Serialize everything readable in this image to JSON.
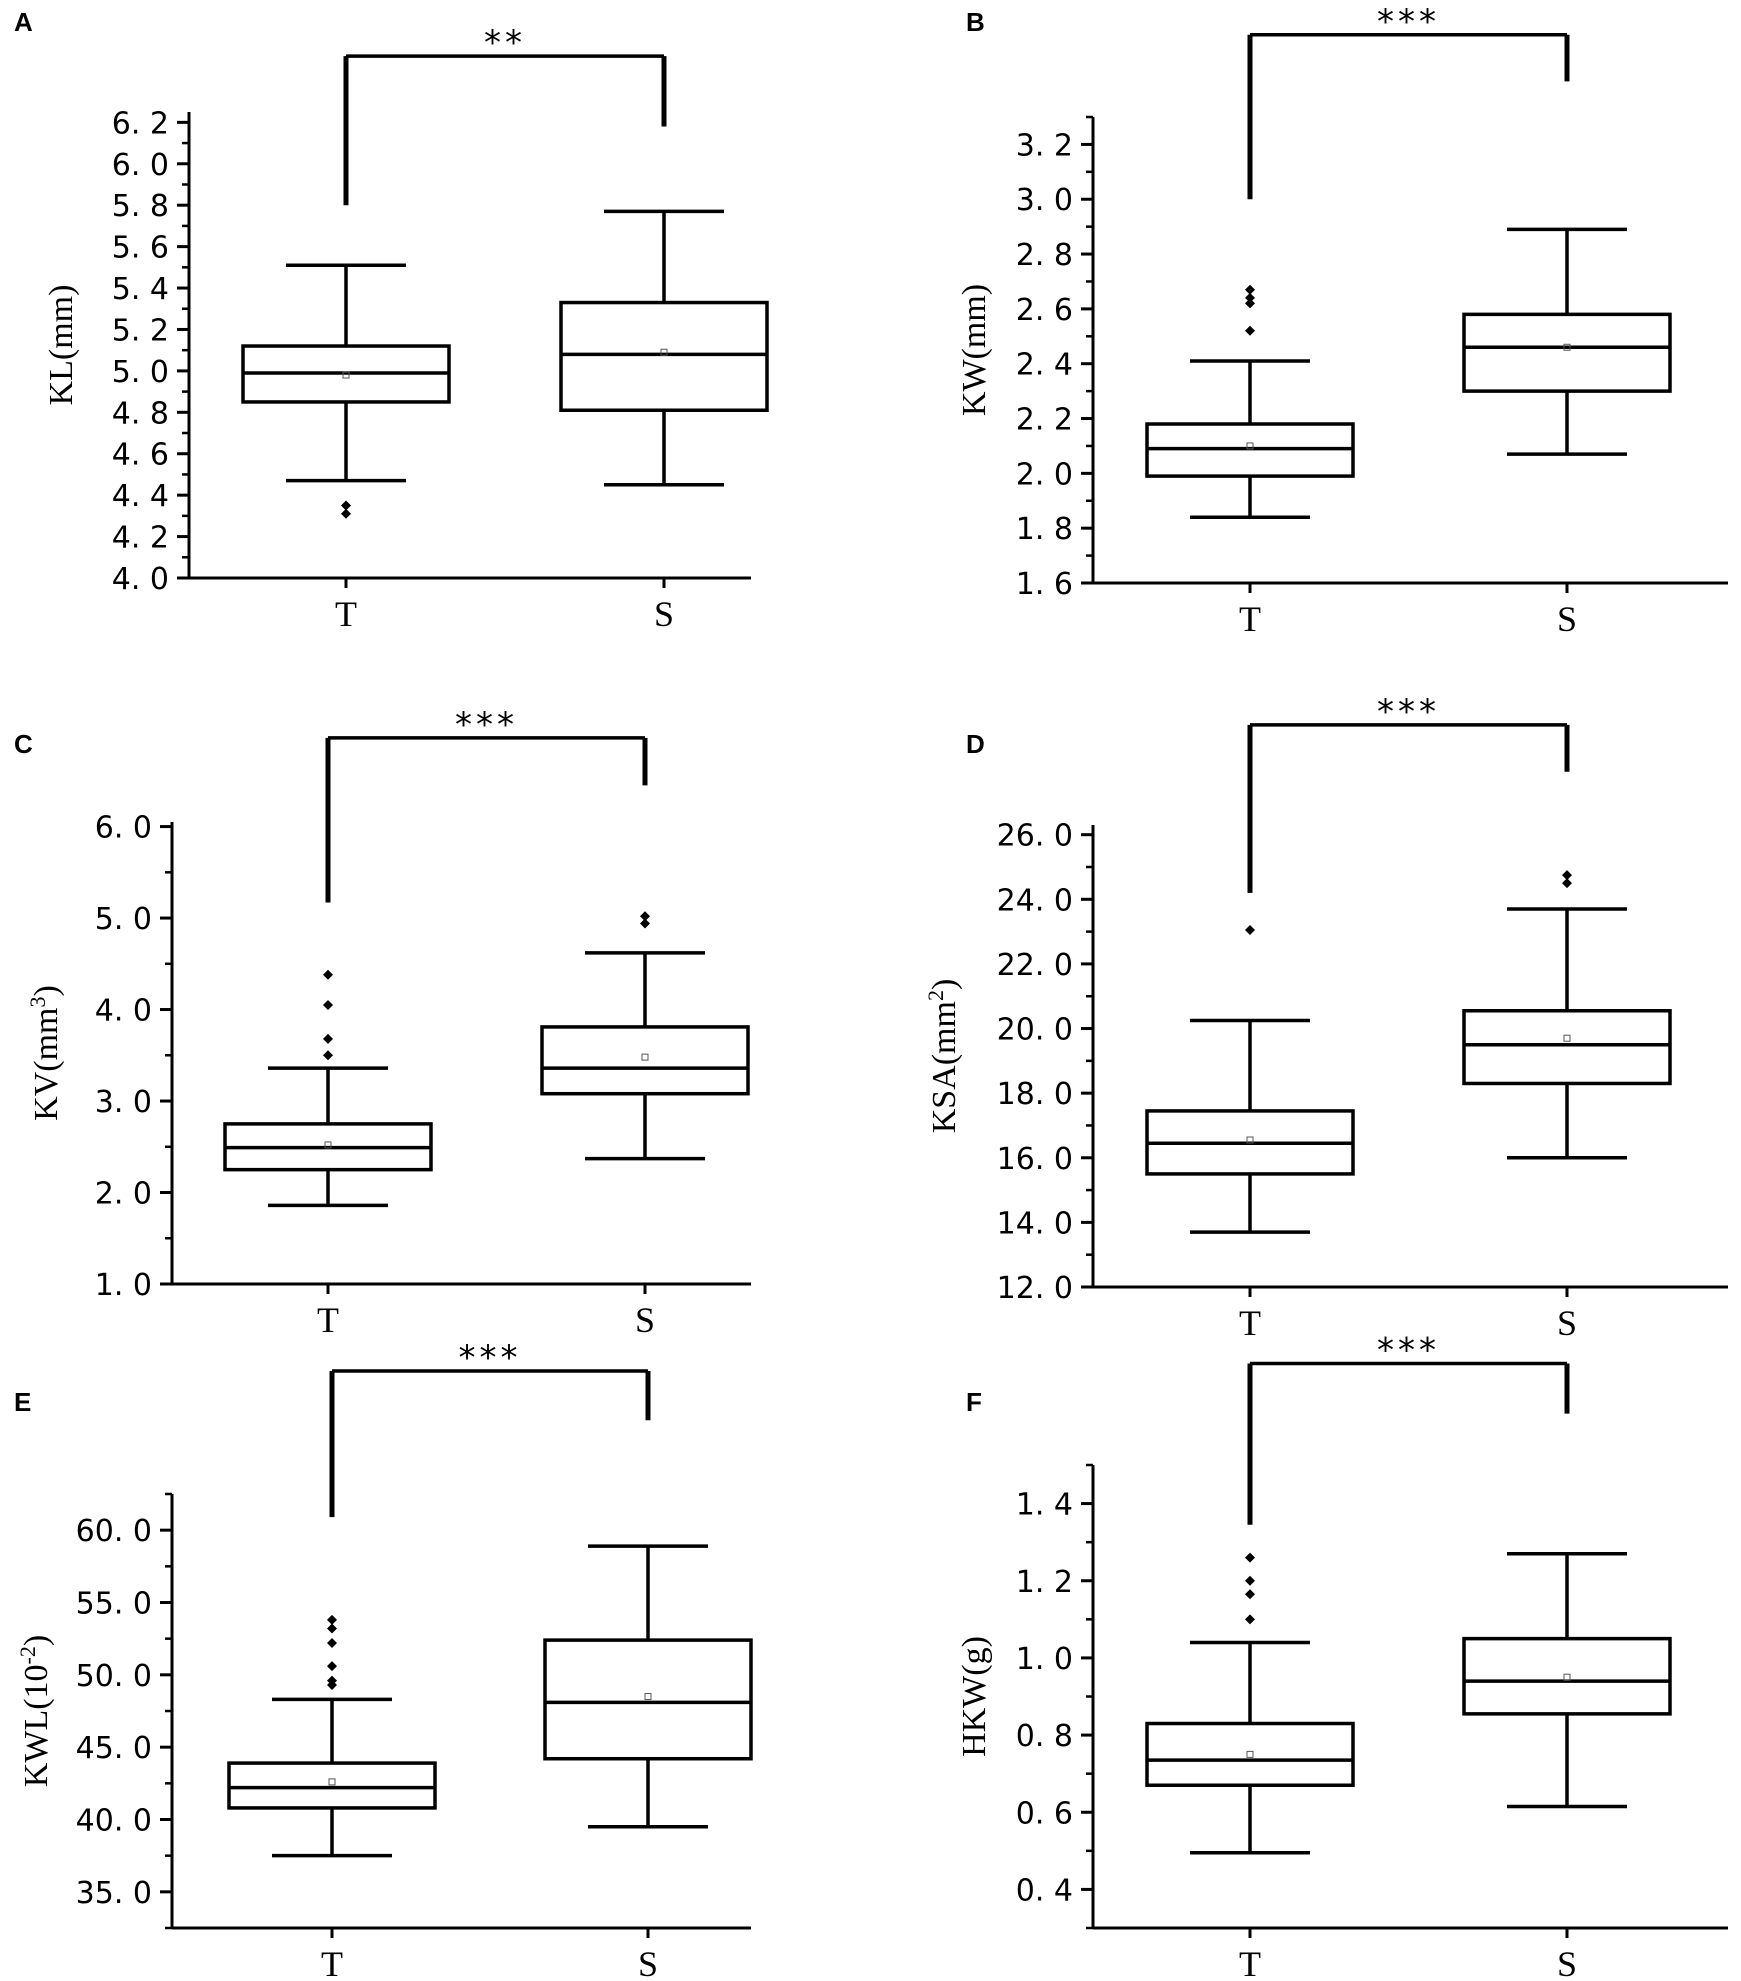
{
  "chart_data": [
    {
      "type": "box",
      "panel": "A",
      "ylabel": "KL(mm)",
      "categories": [
        "T",
        "S"
      ],
      "yticks": [
        "4. 0",
        "4. 2",
        "4. 4",
        "4. 6",
        "4. 8",
        "5. 0",
        "5. 2",
        "5. 4",
        "5. 6",
        "5. 8",
        "6. 0",
        "6. 2"
      ],
      "ytick_values": [
        4.0,
        4.2,
        4.4,
        4.6,
        4.8,
        5.0,
        5.2,
        5.4,
        5.6,
        5.8,
        6.0,
        6.2
      ],
      "ylim": [
        4.0,
        6.25
      ],
      "boxes": [
        {
          "category": "T",
          "min": 4.47,
          "q1": 4.85,
          "median": 4.99,
          "q3": 5.12,
          "max": 5.51,
          "mean": 4.98,
          "outliers": [
            4.35,
            4.31
          ]
        },
        {
          "category": "S",
          "min": 4.45,
          "q1": 4.81,
          "median": 5.08,
          "q3": 5.33,
          "max": 5.77,
          "mean": 5.09,
          "outliers": []
        }
      ],
      "significance": {
        "text": "**",
        "bracket_top": 6.52,
        "left_bottom": 5.8,
        "right_bottom": 6.18
      }
    },
    {
      "type": "box",
      "panel": "B",
      "ylabel": "KW(mm)",
      "categories": [
        "T",
        "S"
      ],
      "yticks": [
        "1. 6",
        "1. 8",
        "2. 0",
        "2. 2",
        "2. 4",
        "2. 6",
        "2. 8",
        "3. 0",
        "3. 2"
      ],
      "ytick_values": [
        1.6,
        1.8,
        2.0,
        2.2,
        2.4,
        2.6,
        2.8,
        3.0,
        3.2
      ],
      "ylim": [
        1.6,
        3.3
      ],
      "boxes": [
        {
          "category": "T",
          "min": 1.84,
          "q1": 1.99,
          "median": 2.09,
          "q3": 2.18,
          "max": 2.41,
          "mean": 2.1,
          "outliers": [
            2.52,
            2.62,
            2.64,
            2.67
          ]
        },
        {
          "category": "S",
          "min": 2.07,
          "q1": 2.3,
          "median": 2.46,
          "q3": 2.58,
          "max": 2.89,
          "mean": 2.46,
          "outliers": []
        }
      ],
      "significance": {
        "text": "***",
        "bracket_top": 3.6,
        "left_bottom": 3.0,
        "right_bottom": 3.43
      }
    },
    {
      "type": "box",
      "panel": "C",
      "ylabel": "KV(mm3)",
      "categories": [
        "T",
        "S"
      ],
      "yticks": [
        "1. 0",
        "2. 0",
        "3. 0",
        "4. 0",
        "5. 0",
        "6. 0"
      ],
      "ytick_values": [
        1.0,
        2.0,
        3.0,
        4.0,
        5.0,
        6.0
      ],
      "ylim": [
        1.0,
        6.05
      ],
      "boxes": [
        {
          "category": "T",
          "min": 1.86,
          "q1": 2.25,
          "median": 2.49,
          "q3": 2.75,
          "max": 3.36,
          "mean": 2.52,
          "outliers": [
            3.5,
            3.68,
            4.05,
            4.38
          ]
        },
        {
          "category": "S",
          "min": 2.37,
          "q1": 3.08,
          "median": 3.36,
          "q3": 3.81,
          "max": 4.62,
          "mean": 3.48,
          "outliers": [
            4.94,
            5.02
          ]
        }
      ],
      "significance": {
        "text": "***",
        "bracket_top": 6.97,
        "left_bottom": 5.17,
        "right_bottom": 6.45
      }
    },
    {
      "type": "box",
      "panel": "D",
      "ylabel": "KSA(mm2)",
      "categories": [
        "T",
        "S"
      ],
      "yticks": [
        "12. 0",
        "14. 0",
        "16. 0",
        "18. 0",
        "20. 0",
        "22. 0",
        "24. 0",
        "26. 0"
      ],
      "ytick_values": [
        12.0,
        14.0,
        16.0,
        18.0,
        20.0,
        22.0,
        24.0,
        26.0
      ],
      "ylim": [
        12.0,
        26.3
      ],
      "boxes": [
        {
          "category": "T",
          "min": 13.7,
          "q1": 15.5,
          "median": 16.45,
          "q3": 17.45,
          "max": 20.25,
          "mean": 16.55,
          "outliers": [
            23.05
          ]
        },
        {
          "category": "S",
          "min": 16.0,
          "q1": 18.3,
          "median": 19.5,
          "q3": 20.55,
          "max": 23.7,
          "mean": 19.7,
          "outliers": [
            24.5,
            24.75
          ]
        }
      ],
      "significance": {
        "text": "***",
        "bracket_top": 29.4,
        "left_bottom": 24.2,
        "right_bottom": 27.95
      }
    },
    {
      "type": "box",
      "panel": "E",
      "ylabel": "KWL(10-2)",
      "categories": [
        "T",
        "S"
      ],
      "yticks": [
        "35. 0",
        "40. 0",
        "45. 0",
        "50. 0",
        "55. 0",
        "60. 0"
      ],
      "ytick_values": [
        35.0,
        40.0,
        45.0,
        50.0,
        55.0,
        60.0
      ],
      "ylim": [
        32.5,
        62.5
      ],
      "boxes": [
        {
          "category": "T",
          "min": 37.5,
          "q1": 40.8,
          "median": 42.2,
          "q3": 43.9,
          "max": 48.3,
          "mean": 42.6,
          "outliers": [
            49.3,
            49.6,
            50.6,
            52.2,
            53.2,
            53.8
          ]
        },
        {
          "category": "S",
          "min": 39.5,
          "q1": 44.2,
          "median": 48.1,
          "q3": 52.4,
          "max": 58.9,
          "mean": 48.5,
          "outliers": []
        }
      ],
      "significance": {
        "text": "***",
        "bracket_top": 71.0,
        "left_bottom": 60.9,
        "right_bottom": 67.6
      }
    },
    {
      "type": "box",
      "panel": "F",
      "ylabel": "HKW(g)",
      "categories": [
        "T",
        "S"
      ],
      "yticks": [
        "0. 4",
        "0. 6",
        "0. 8",
        "1. 0",
        "1. 2",
        "1. 4"
      ],
      "ytick_values": [
        0.4,
        0.6,
        0.8,
        1.0,
        1.2,
        1.4
      ],
      "ylim": [
        0.3,
        1.5
      ],
      "boxes": [
        {
          "category": "T",
          "min": 0.495,
          "q1": 0.67,
          "median": 0.735,
          "q3": 0.83,
          "max": 1.04,
          "mean": 0.75,
          "outliers": [
            1.1,
            1.165,
            1.2,
            1.26
          ]
        },
        {
          "category": "S",
          "min": 0.615,
          "q1": 0.855,
          "median": 0.94,
          "q3": 1.05,
          "max": 1.27,
          "mean": 0.95,
          "outliers": []
        }
      ],
      "significance": {
        "text": "***",
        "bracket_top": 1.763,
        "left_bottom": 1.345,
        "right_bottom": 1.633
      }
    }
  ]
}
